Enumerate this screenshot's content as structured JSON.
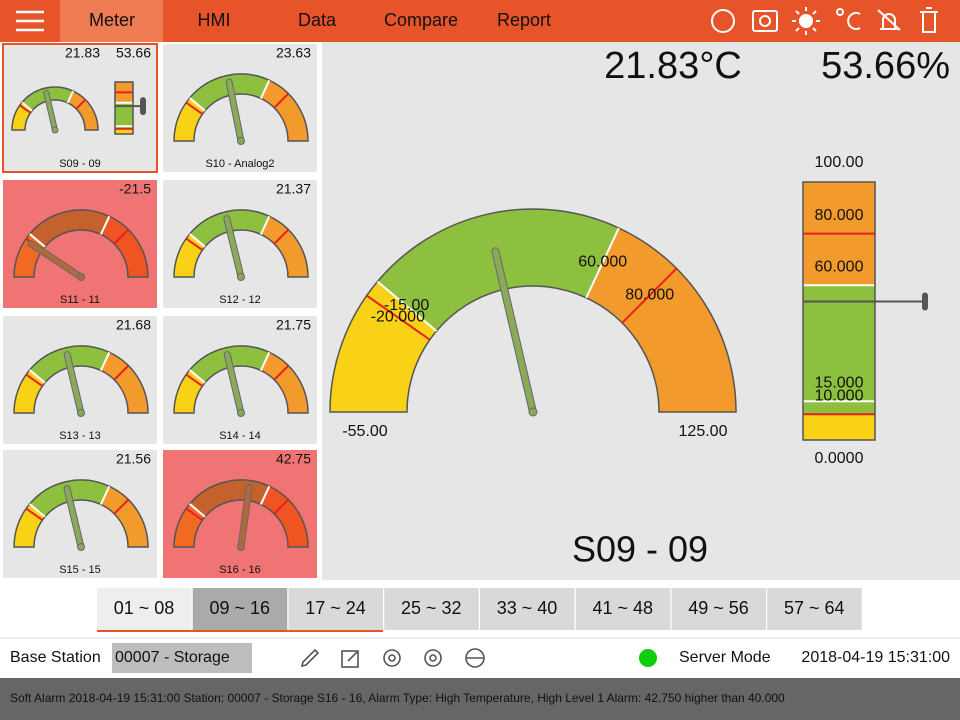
{
  "nav": {
    "items": [
      "Meter",
      "HMI",
      "Data",
      "Compare",
      "Report"
    ]
  },
  "tiles": [
    {
      "label": "S09 - 09",
      "value": "21.83",
      "value2": "53.66",
      "alarm": false
    },
    {
      "label": "S10 - Analog2",
      "value": "23.63",
      "alarm": false
    },
    {
      "label": "S11 - 11",
      "value": "-21.5",
      "alarm": true
    },
    {
      "label": "S12 - 12",
      "value": "21.37",
      "alarm": false
    },
    {
      "label": "S13 - 13",
      "value": "21.68",
      "alarm": false
    },
    {
      "label": "S14 - 14",
      "value": "21.75",
      "alarm": false
    },
    {
      "label": "S15 - 15",
      "value": "21.56",
      "alarm": false
    },
    {
      "label": "S16 - 16",
      "value": "42.75",
      "alarm": true
    }
  ],
  "main": {
    "temperature": "21.83°C",
    "humidity": "53.66%",
    "station": "S09 - 09",
    "gauge": {
      "min": "-55.00",
      "max": "125.00",
      "low_warn": "-15.00",
      "low_alarm": "-20.000",
      "high_warn": "60.000",
      "high_alarm": "80.000"
    },
    "bar": {
      "max": "100.00",
      "min": "0.0000",
      "high_alarm": "80.000",
      "high_warn": "60.000",
      "low_warn": "15.000",
      "low_alarm": "10.000"
    }
  },
  "tabs": [
    "01 ~ 08",
    "09 ~ 16",
    "17 ~ 24",
    "25 ~ 32",
    "33 ~ 40",
    "41 ~ 48",
    "49 ~ 56",
    "57 ~ 64"
  ],
  "footer": {
    "base_station_label": "Base Station",
    "station": "00007 - Storage",
    "mode": "Server Mode",
    "datetime": "2018-04-19 15:31:00"
  },
  "alarm_message": "Soft Alarm 2018-04-19 15:31:00 Station: 00007 - Storage S16 - 16, Alarm Type: High Temperature, High Level 1 Alarm: 42.750 higher than 40.000"
}
